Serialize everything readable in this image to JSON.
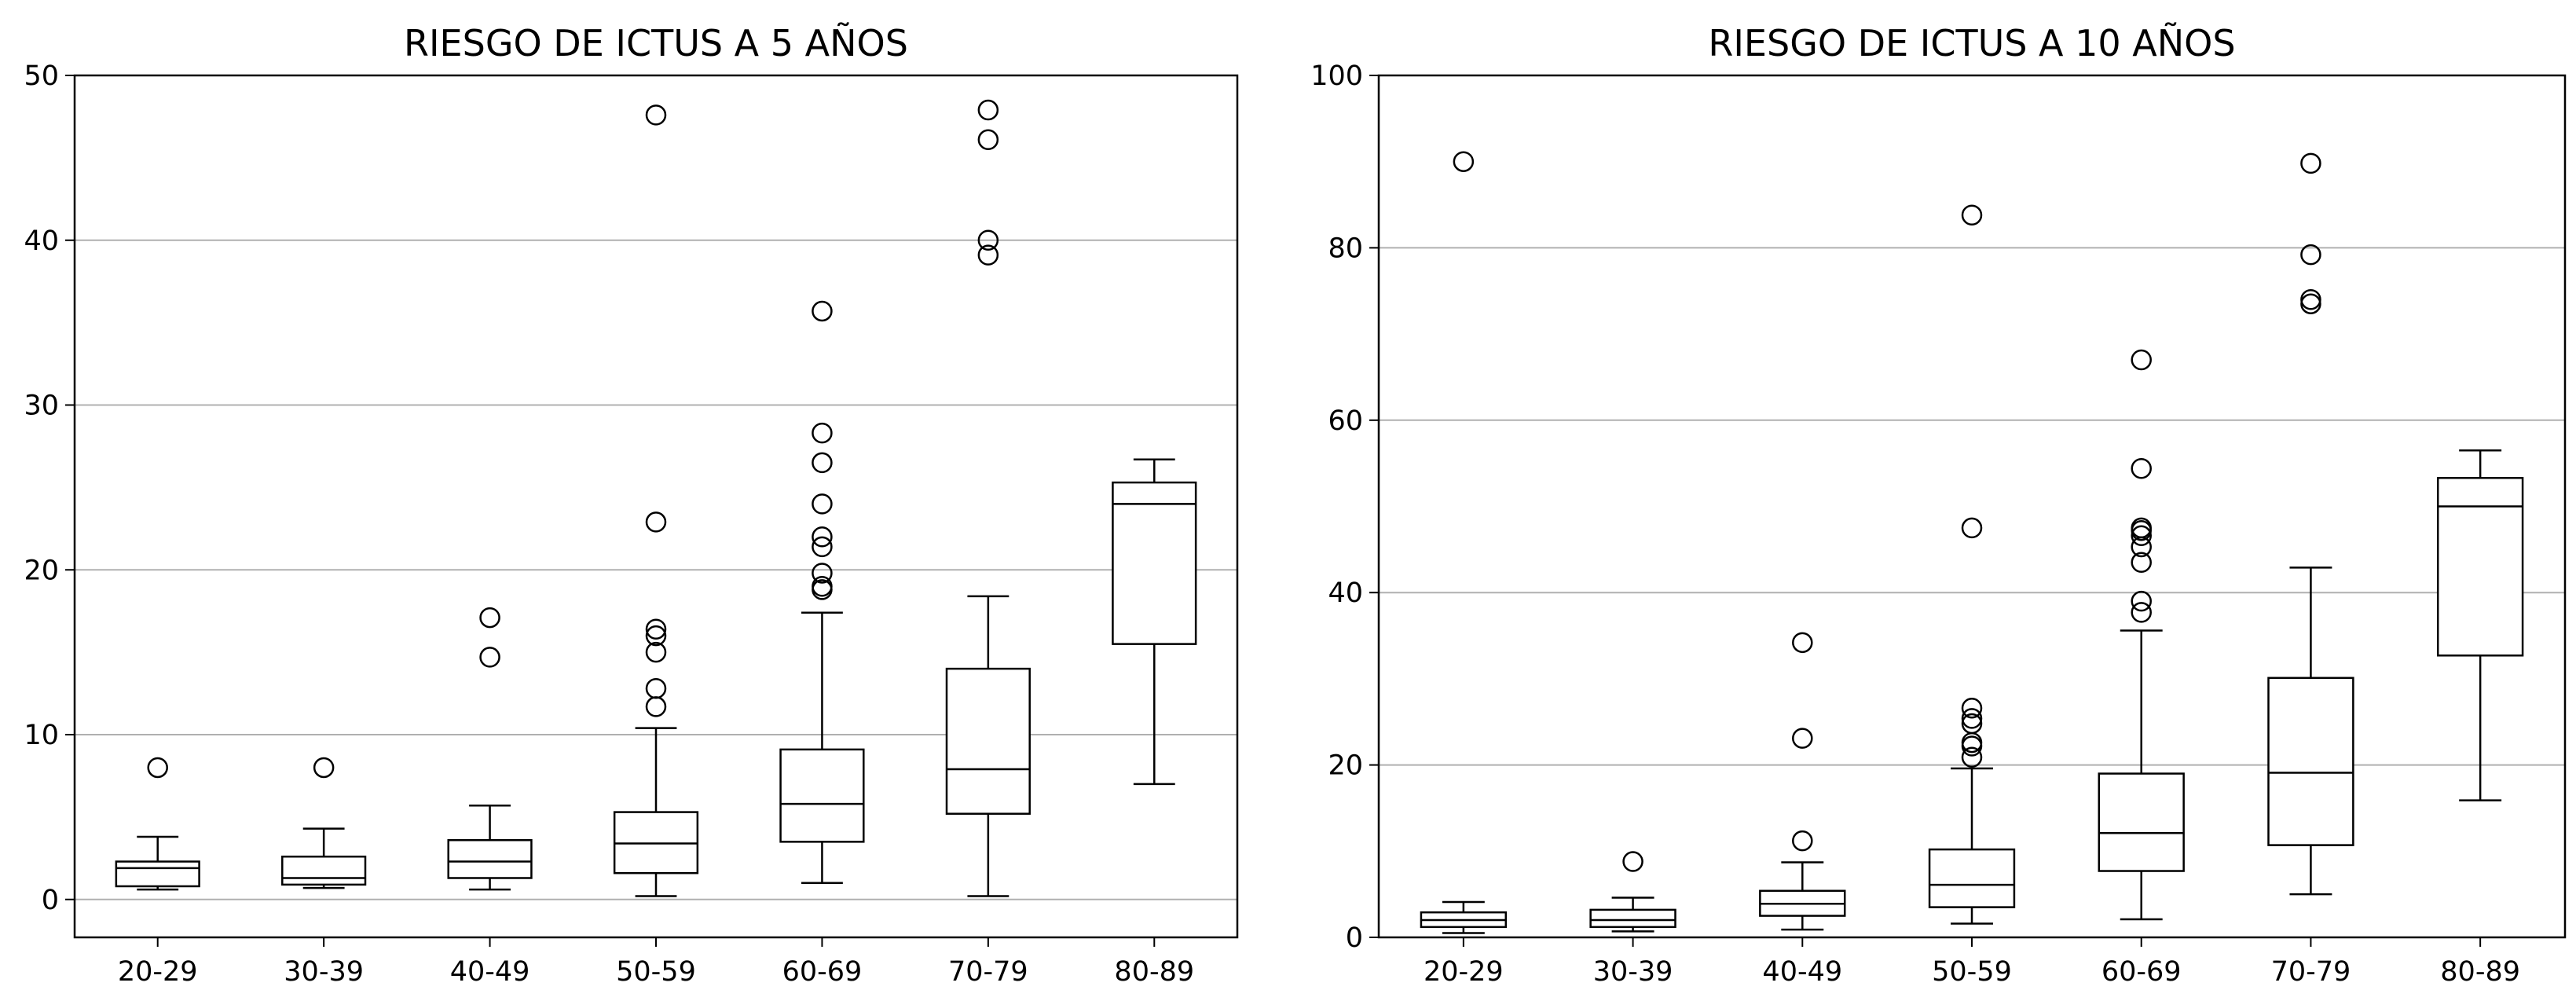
{
  "chart_data": [
    {
      "type": "boxplot",
      "title": "RIESGO DE ICTUS A 5 AÑOS",
      "xlabel": "",
      "ylabel": "",
      "ylim": [
        -2.3,
        50
      ],
      "yticks": [
        0,
        10,
        20,
        30,
        40,
        50
      ],
      "grid": "y",
      "categories": [
        "20-29",
        "30-39",
        "40-49",
        "50-59",
        "60-69",
        "70-79",
        "80-89"
      ],
      "boxes": [
        {
          "whislo": 0.6,
          "q1": 0.8,
          "med": 1.9,
          "q3": 2.3,
          "whishi": 3.8,
          "fliers": [
            8.0
          ]
        },
        {
          "whislo": 0.7,
          "q1": 0.9,
          "med": 1.3,
          "q3": 2.6,
          "whishi": 4.3,
          "fliers": [
            8.0
          ]
        },
        {
          "whislo": 0.6,
          "q1": 1.3,
          "med": 2.3,
          "q3": 3.6,
          "whishi": 5.7,
          "fliers": [
            14.7,
            17.1
          ]
        },
        {
          "whislo": 0.2,
          "q1": 1.6,
          "med": 3.4,
          "q3": 5.3,
          "whishi": 10.4,
          "fliers": [
            11.7,
            12.8,
            15.0,
            16.0,
            16.4,
            22.9,
            47.6
          ]
        },
        {
          "whislo": 1.0,
          "q1": 3.5,
          "med": 5.8,
          "q3": 9.1,
          "whishi": 17.4,
          "fliers": [
            18.8,
            19.0,
            19.8,
            21.4,
            22.0,
            24.0,
            26.5,
            28.3,
            35.7
          ]
        },
        {
          "whislo": 0.2,
          "q1": 5.2,
          "med": 7.9,
          "q3": 14.0,
          "whishi": 18.4,
          "fliers": [
            39.1,
            40.0,
            46.1,
            47.9
          ]
        },
        {
          "whislo": 7.0,
          "q1": 15.5,
          "med": 24.0,
          "q3": 25.3,
          "whishi": 26.7,
          "fliers": []
        }
      ]
    },
    {
      "type": "boxplot",
      "title": "RIESGO DE ICTUS A 10 AÑOS",
      "xlabel": "",
      "ylabel": "",
      "ylim": [
        0,
        100
      ],
      "yticks": [
        0,
        20,
        40,
        60,
        80,
        100
      ],
      "grid": "y",
      "categories": [
        "20-29",
        "30-39",
        "40-49",
        "50-59",
        "60-69",
        "70-79",
        "80-89"
      ],
      "boxes": [
        {
          "whislo": 0.5,
          "q1": 1.2,
          "med": 2.0,
          "q3": 2.9,
          "whishi": 4.1,
          "fliers": [
            90.0
          ]
        },
        {
          "whislo": 0.7,
          "q1": 1.2,
          "med": 2.0,
          "q3": 3.2,
          "whishi": 4.6,
          "fliers": [
            8.8
          ]
        },
        {
          "whislo": 0.9,
          "q1": 2.5,
          "med": 3.9,
          "q3": 5.4,
          "whishi": 8.7,
          "fliers": [
            11.2,
            23.1,
            34.2
          ]
        },
        {
          "whislo": 1.6,
          "q1": 3.5,
          "med": 6.1,
          "q3": 10.2,
          "whishi": 19.6,
          "fliers": [
            20.9,
            22.2,
            22.6,
            24.8,
            25.4,
            26.6,
            47.5,
            83.8
          ]
        },
        {
          "whislo": 2.1,
          "q1": 7.7,
          "med": 12.1,
          "q3": 19.0,
          "whishi": 35.6,
          "fliers": [
            37.7,
            39.0,
            43.5,
            45.3,
            46.6,
            47.2,
            47.5,
            54.4,
            67.0
          ]
        },
        {
          "whislo": 5.0,
          "q1": 10.7,
          "med": 19.1,
          "q3": 30.1,
          "whishi": 42.9,
          "fliers": [
            73.5,
            74.0,
            79.2,
            89.8
          ]
        },
        {
          "whislo": 15.9,
          "q1": 32.7,
          "med": 50.0,
          "q3": 53.3,
          "whishi": 56.5,
          "fliers": []
        }
      ]
    }
  ]
}
